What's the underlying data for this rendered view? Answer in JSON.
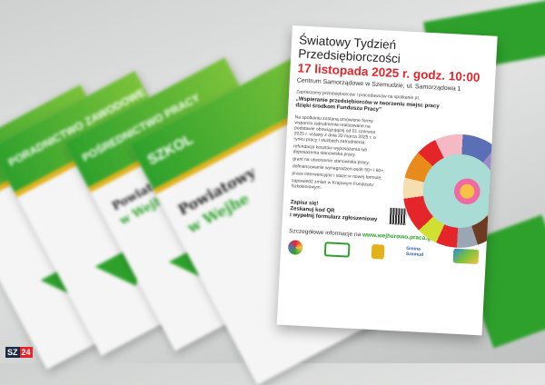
{
  "leaflets": [
    {
      "label": "PORADNICTWO ZAWODOWE"
    },
    {
      "label": "POŚREDNICTWO PRACY",
      "subtitle_lines": [
        "Powiatowy Urząd Pracy",
        "w Wejherowie"
      ]
    },
    {
      "label": "SZKOL",
      "subtitle_lines": [
        "Powiatowy",
        "w Wejhe"
      ]
    }
  ],
  "poster": {
    "title_line1": "Światowy Tydzień",
    "title_line2": "Przedsiębiorczości",
    "date": "17 listopada 2025 r. godz. 10:00",
    "place": "Centrum Samorządowe w Szemudzie, ul. Samorządowa 1",
    "invite": "Zapraszamy przedsiębiorców i pracodawców na spotkanie pt.",
    "meeting_title": "„Wspieranie przedsiębiorców w tworzeniu miejsc pracy dzięki środkom Funduszu Pracy”",
    "intro": "Na spotkaniu zostaną omówione formy wsparcia zatrudnienia realizowane na podstawie obowiązującej od 01 czerwca 2025 r. ustawy z dnia 20 marca 2025 r. o rynku pracy i służbach zatrudnienia:",
    "list": [
      "refundacja kosztów wyposażenia lub doposażenia stanowiska pracy,",
      "grant na utworzenie stanowiska pracy,",
      "dofinansowanie wynagrodzeń osób 50+ i 60+,",
      "prace interwencyjne i staże w nowej formule,",
      "zapowiedź zmian w Krajowym Funduszu Szkoleniowym."
    ],
    "signup": [
      "Zapisz się!",
      "Zeskanuj kod QR",
      "i wypełnij formularz zgłoszeniowy"
    ],
    "details_prefix": "Szczegółowe informacje na",
    "details_url": "www.wejherowo.praca.gov.pl",
    "logos": [
      "FUNDACJA ŚWIATOWY TYDZIEŃ",
      "Powiatowy Urząd Pracy",
      "Herb Powiatu",
      "Gmina Szemud",
      "logo"
    ],
    "accent": "#e4262b",
    "green": "#2ea12c"
  },
  "watermark": {
    "part1": "SZ",
    "part2": "24"
  }
}
